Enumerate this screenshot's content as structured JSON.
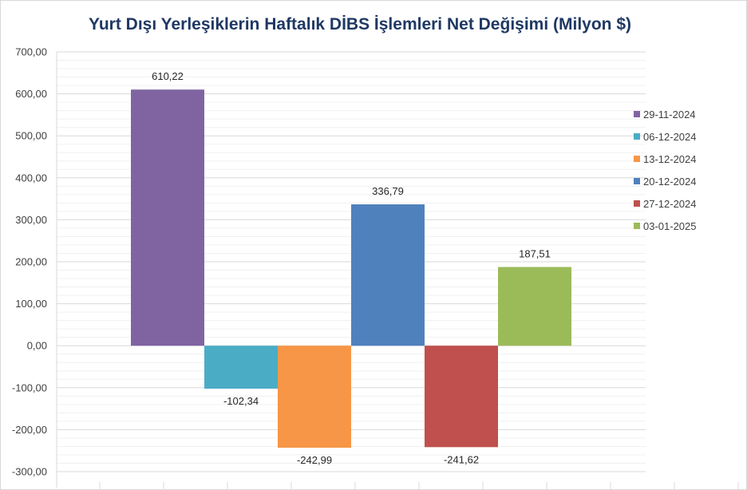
{
  "chart_data": {
    "type": "bar",
    "title": "Yurt Dışı Yerleşiklerin Haftalık DİBS İşlemleri Net Değişimi (Milyon $)",
    "categories": [
      "29-11-2024",
      "06-12-2024",
      "13-12-2024",
      "20-12-2024",
      "27-12-2024",
      "03-01-2025"
    ],
    "values": [
      610.22,
      -102.34,
      -242.99,
      336.79,
      -241.62,
      187.51
    ],
    "data_labels": [
      "610,22",
      "-102,34",
      "-242,99",
      "336,79",
      "-241,62",
      "187,51"
    ],
    "colors": [
      "#8064a2",
      "#4bacc6",
      "#f79646",
      "#4f81bd",
      "#c0504d",
      "#9bbb59"
    ],
    "ylim": [
      -300,
      700
    ],
    "yticks": [
      700,
      600,
      500,
      400,
      300,
      200,
      100,
      0,
      -100,
      -200,
      -300
    ],
    "ytick_labels": [
      "700,00",
      "600,00",
      "500,00",
      "400,00",
      "300,00",
      "200,00",
      "100,00",
      "0,00",
      "-100,00",
      "-200,00",
      "-300,00"
    ],
    "xlabel": "",
    "ylabel": "",
    "grid": true,
    "legend_position": "right",
    "legend": [
      "29-11-2024",
      "06-12-2024",
      "13-12-2024",
      "20-12-2024",
      "27-12-2024",
      "03-01-2025"
    ]
  }
}
